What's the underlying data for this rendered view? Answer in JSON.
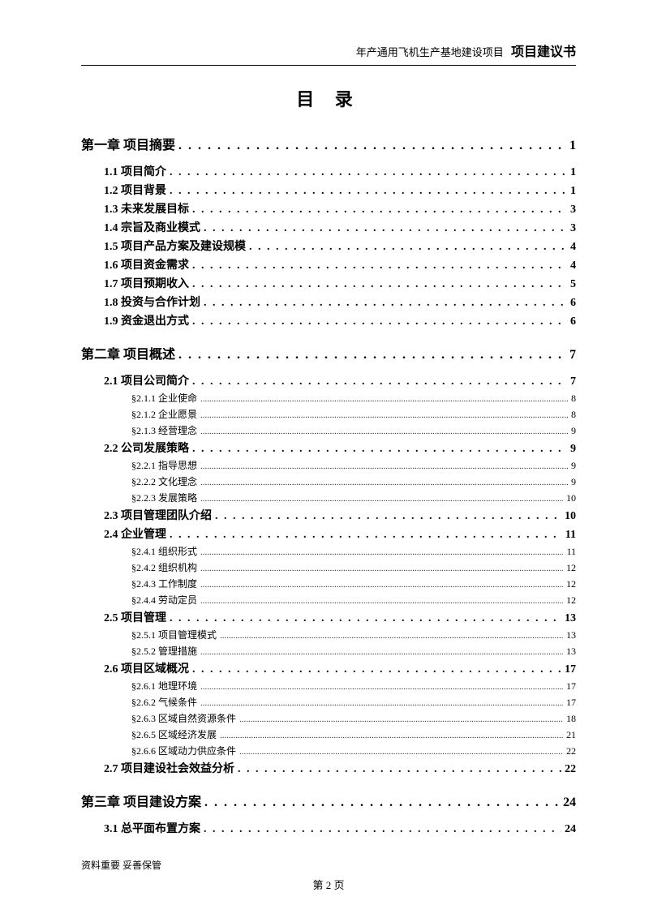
{
  "header": {
    "subtitle": "年产通用飞机生产基地建设项目",
    "maintitle": "项目建议书"
  },
  "toc_title": "目 录",
  "dot_chapter": ". . . . . . . . . . . . . . . . . . . . . . . . . . . . . . . . . . . . . . . . . . .",
  "dot_l2": ". . . . . . . . . . . . . . . . . . . . . . . . . . . . . . . . . . . . . . . . . . . . . . . . . . . . . . . . . . . .",
  "dot_l3": "..............................................................................................................................................................................",
  "chapters": [
    {
      "label": "第一章 项目摘要",
      "page": "1",
      "items": [
        {
          "num": "1.1",
          "title": "项目简介",
          "page": "1"
        },
        {
          "num": "1.2",
          "title": "项目背景",
          "page": "1"
        },
        {
          "num": "1.3",
          "title": "未来发展目标",
          "page": "3"
        },
        {
          "num": "1.4",
          "title": "宗旨及商业模式",
          "page": "3"
        },
        {
          "num": "1.5",
          "title": "项目产品方案及建设规模",
          "page": "4"
        },
        {
          "num": "1.6",
          "title": "项目资金需求",
          "page": "4"
        },
        {
          "num": "1.7",
          "title": "项目预期收入",
          "page": "5"
        },
        {
          "num": "1.8",
          "title": "投资与合作计划",
          "page": "6"
        },
        {
          "num": "1.9",
          "title": "资金退出方式",
          "page": "6"
        }
      ]
    },
    {
      "label": "第二章 项目概述",
      "page": "7",
      "items": [
        {
          "num": "2.1",
          "title": "项目公司简介",
          "page": "7",
          "subs": [
            {
              "num": "§2.1.1",
              "title": "企业使命",
              "page": "8"
            },
            {
              "num": "§2.1.2",
              "title": "企业愿景",
              "page": "8"
            },
            {
              "num": "§2.1.3",
              "title": "经营理念",
              "page": "9"
            }
          ]
        },
        {
          "num": "2.2",
          "title": "公司发展策略",
          "page": "9",
          "subs": [
            {
              "num": "§2.2.1",
              "title": "指导思想",
              "page": "9"
            },
            {
              "num": "§2.2.2",
              "title": "文化理念",
              "page": "9"
            },
            {
              "num": "§2.2.3",
              "title": "发展策略",
              "page": "10"
            }
          ]
        },
        {
          "num": "2.3",
          "title": "项目管理团队介绍",
          "page": "10"
        },
        {
          "num": "2.4",
          "title": "企业管理",
          "page": "11",
          "subs": [
            {
              "num": "§2.4.1",
              "title": "组织形式",
              "page": "11"
            },
            {
              "num": "§2.4.2",
              "title": "组织机构",
              "page": "12"
            },
            {
              "num": "§2.4.3",
              "title": "工作制度",
              "page": "12"
            },
            {
              "num": "§2.4.4",
              "title": "劳动定员",
              "page": "12"
            }
          ]
        },
        {
          "num": "2.5",
          "title": "项目管理",
          "page": "13",
          "subs": [
            {
              "num": "§2.5.1",
              "title": "项目管理模式",
              "page": "13"
            },
            {
              "num": "§2.5.2",
              "title": "管理措施",
              "page": "13"
            }
          ]
        },
        {
          "num": "2.6",
          "title": "项目区域概况",
          "page": "17",
          "subs": [
            {
              "num": "§2.6.1",
              "title": "地理环境",
              "page": "17"
            },
            {
              "num": "§2.6.2",
              "title": "气候条件",
              "page": "17"
            },
            {
              "num": "§2.6.3",
              "title": "区域自然资源条件",
              "page": "18"
            },
            {
              "num": "§2.6.5",
              "title": "区域经济发展",
              "page": "21"
            },
            {
              "num": "§2.6.6",
              "title": "区域动力供应条件",
              "page": "22"
            }
          ]
        },
        {
          "num": "2.7",
          "title": "项目建设社会效益分析",
          "page": "22"
        }
      ]
    },
    {
      "label": "第三章 项目建设方案",
      "page": "24",
      "items": [
        {
          "num": "3.1",
          "title": "总平面布置方案",
          "page": "24"
        }
      ]
    }
  ],
  "footer": {
    "note": "资料重要  妥善保管",
    "page": "第 2 页"
  }
}
